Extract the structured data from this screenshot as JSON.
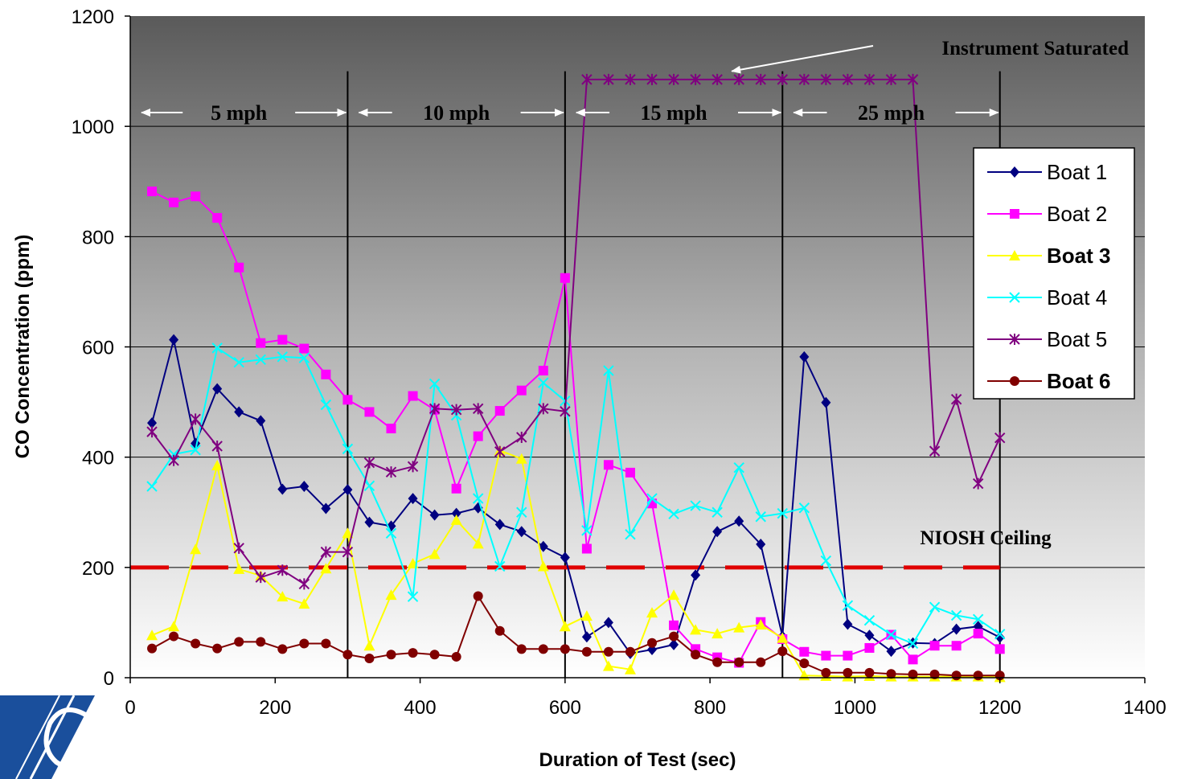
{
  "chart_data": {
    "type": "line",
    "xlabel": "Duration of Test (sec)",
    "ylabel": "CO Concentration (ppm)",
    "xlim": [
      0,
      1400
    ],
    "ylim": [
      0,
      1200
    ],
    "x_ticks": [
      "0",
      "200",
      "400",
      "600",
      "800",
      "1000",
      "1200",
      "1400"
    ],
    "y_ticks": [
      "0",
      "200",
      "400",
      "600",
      "800",
      "1000",
      "1200"
    ],
    "grid": "horizontal",
    "legend_position": "right",
    "background": "vertical gradient, dark gray at top to white at bottom",
    "x": [
      30,
      60,
      90,
      120,
      150,
      180,
      210,
      240,
      270,
      300,
      330,
      360,
      390,
      420,
      450,
      480,
      510,
      540,
      570,
      600,
      630,
      660,
      690,
      720,
      750,
      780,
      810,
      840,
      870,
      900,
      930,
      960,
      990,
      1020,
      1050,
      1080,
      1110,
      1140,
      1170,
      1200
    ],
    "series": [
      {
        "name": "Boat 1",
        "color": "#000080",
        "marker": "diamond",
        "bold": false,
        "values": [
          462,
          613,
          425,
          524,
          482,
          466,
          342,
          347,
          307,
          341,
          282,
          275,
          325,
          295,
          298,
          308,
          278,
          265,
          238,
          218,
          74,
          100,
          44,
          51,
          60,
          186,
          265,
          284,
          242,
          75,
          582,
          499,
          97,
          77,
          48,
          63,
          62,
          88,
          93,
          73
        ]
      },
      {
        "name": "Boat 2",
        "color": "#FF00FF",
        "marker": "square",
        "bold": false,
        "values": [
          882,
          862,
          873,
          834,
          744,
          607,
          613,
          597,
          550,
          504,
          482,
          452,
          511,
          486,
          343,
          438,
          484,
          521,
          557,
          725,
          234,
          386,
          372,
          316,
          95,
          52,
          37,
          27,
          101,
          70,
          47,
          40,
          40,
          54,
          78,
          33,
          58,
          58,
          80,
          52
        ]
      },
      {
        "name": "Boat 3",
        "color": "#FFFF00",
        "marker": "triangle",
        "bold": true,
        "values": [
          77,
          93,
          233,
          385,
          197,
          185,
          147,
          134,
          198,
          262,
          58,
          150,
          207,
          224,
          286,
          243,
          412,
          397,
          202,
          93,
          112,
          21,
          15,
          118,
          150,
          87,
          80,
          91,
          96,
          72,
          4,
          3,
          2,
          3,
          2,
          2,
          2,
          2,
          2,
          1
        ]
      },
      {
        "name": "Boat 4",
        "color": "#00FFFF",
        "marker": "x",
        "bold": false,
        "values": [
          347,
          405,
          413,
          598,
          572,
          577,
          582,
          580,
          495,
          415,
          348,
          262,
          147,
          533,
          476,
          325,
          202,
          300,
          535,
          502,
          267,
          557,
          260,
          325,
          297,
          312,
          300,
          381,
          292,
          298,
          308,
          212,
          131,
          104,
          78,
          62,
          128,
          113,
          106,
          79
        ]
      },
      {
        "name": "Boat 5",
        "color": "#800080",
        "marker": "star",
        "bold": false,
        "values": [
          446,
          394,
          469,
          420,
          235,
          182,
          195,
          170,
          228,
          228,
          390,
          373,
          383,
          488,
          486,
          488,
          410,
          436,
          488,
          483,
          1085,
          1085,
          1085,
          1085,
          1085,
          1085,
          1085,
          1085,
          1085,
          1085,
          1085,
          1085,
          1085,
          1085,
          1085,
          1085,
          411,
          505,
          352,
          435
        ]
      },
      {
        "name": "Boat 6",
        "color": "#800000",
        "marker": "circle",
        "bold": true,
        "values": [
          53,
          75,
          62,
          53,
          65,
          65,
          52,
          62,
          62,
          42,
          35,
          42,
          45,
          42,
          38,
          148,
          85,
          52,
          52,
          52,
          47,
          47,
          47,
          63,
          75,
          42,
          28,
          28,
          28,
          48,
          26,
          9,
          9,
          9,
          7,
          6,
          6,
          4,
          4,
          4
        ]
      }
    ],
    "reference_lines": {
      "niosh_ceiling": {
        "y": 200,
        "color": "#E00000",
        "label": "NIOSH Ceiling"
      },
      "phase_dividers_x": [
        300,
        600,
        900,
        1200
      ]
    },
    "annotations": {
      "speed_labels": [
        {
          "label": "5 mph"
        },
        {
          "label": "10 mph"
        },
        {
          "label": "15 mph"
        },
        {
          "label": "25 mph"
        }
      ],
      "saturated": {
        "label": "Instrument Saturated"
      }
    }
  }
}
